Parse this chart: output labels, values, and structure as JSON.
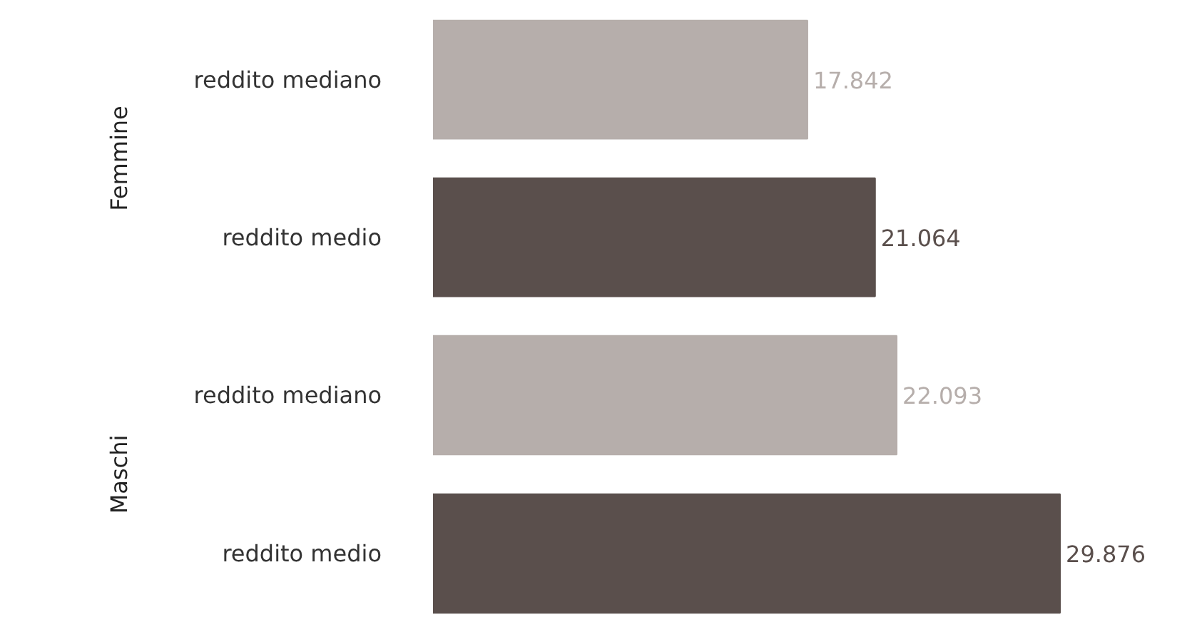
{
  "chart_data": [
    {
      "type": "bar",
      "orientation": "horizontal",
      "ylabel": "Femmine",
      "categories": [
        "reddito mediano",
        "reddito medio"
      ],
      "values": [
        17842,
        21064
      ],
      "value_labels": [
        "17.842",
        "21.064"
      ],
      "colors": [
        "#b6aeab",
        "#5a4f4c"
      ]
    },
    {
      "type": "bar",
      "orientation": "horizontal",
      "ylabel": "Maschi",
      "categories": [
        "reddito mediano",
        "reddito medio"
      ],
      "values": [
        22093,
        29876
      ],
      "value_labels": [
        "22.093",
        "29.876"
      ],
      "colors": [
        "#b6aeab",
        "#5a4f4c"
      ]
    }
  ]
}
